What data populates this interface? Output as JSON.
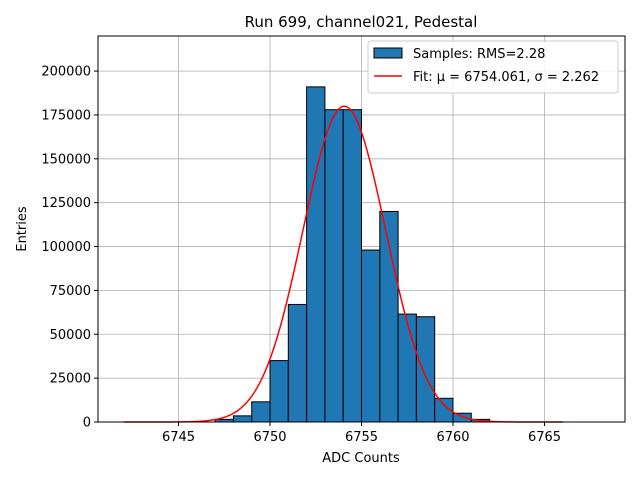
{
  "chart_data": {
    "type": "bar",
    "title": "Run 699, channel021, Pedestal",
    "xlabel": "ADC Counts",
    "ylabel": "Entries",
    "xlim": [
      6740.6,
      6769.4
    ],
    "ylim": [
      0,
      220000
    ],
    "xticks": [
      6745,
      6750,
      6755,
      6760,
      6765
    ],
    "yticks": [
      0,
      25000,
      50000,
      75000,
      100000,
      125000,
      150000,
      175000,
      200000
    ],
    "grid": true,
    "bin_width": 1,
    "bins": [
      {
        "x": 6747.5,
        "value": 1500
      },
      {
        "x": 6748.5,
        "value": 3500
      },
      {
        "x": 6749.5,
        "value": 11500
      },
      {
        "x": 6750.5,
        "value": 35000
      },
      {
        "x": 6751.5,
        "value": 67000
      },
      {
        "x": 6752.5,
        "value": 191000
      },
      {
        "x": 6753.5,
        "value": 178000
      },
      {
        "x": 6754.5,
        "value": 178000
      },
      {
        "x": 6755.5,
        "value": 98000
      },
      {
        "x": 6756.5,
        "value": 120000
      },
      {
        "x": 6757.5,
        "value": 61500
      },
      {
        "x": 6758.5,
        "value": 60000
      },
      {
        "x": 6759.5,
        "value": 13500
      },
      {
        "x": 6760.5,
        "value": 5000
      },
      {
        "x": 6761.5,
        "value": 1500
      }
    ],
    "fit": {
      "mu": 6754.061,
      "sigma": 2.262,
      "amplitude": 180000,
      "x_range": [
        6742,
        6766
      ]
    },
    "legend": {
      "position": "top-right",
      "entries": [
        {
          "label": "Samples: RMS=2.28",
          "kind": "patch",
          "color": "#1f77b4"
        },
        {
          "label": "Fit: μ = 6754.061, σ = 2.262",
          "kind": "line",
          "color": "#ff0000"
        }
      ]
    },
    "colors": {
      "bars": "#1f77b4",
      "fit": "#ff0000",
      "grid": "#b0b0b0"
    }
  }
}
